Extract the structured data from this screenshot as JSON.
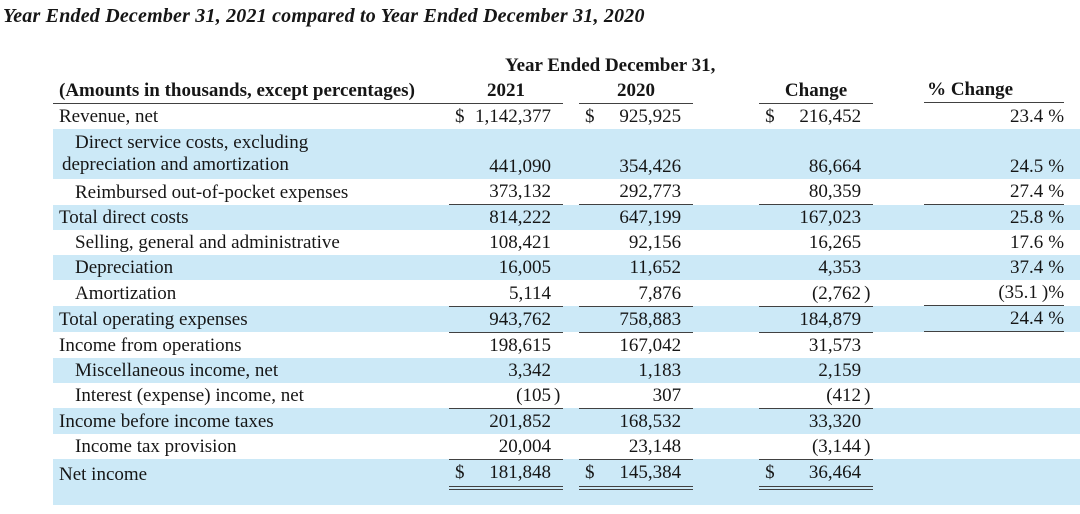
{
  "title": "Year Ended December 31, 2021 compared to Year Ended December 31, 2020",
  "table": {
    "group_header": "Year Ended December 31,",
    "col_headers": {
      "label": "(Amounts in thousands, except percentages)",
      "y2021": "2021",
      "y2020": "2020",
      "change": "Change",
      "pct_change": "% Change"
    },
    "currency_symbol": "$",
    "highlight_color": "#cce9f7",
    "rule_color": "#414141",
    "rows": [
      {
        "label": "Revenue, net",
        "indent": false,
        "highlight": false,
        "dollar": true,
        "v2021": "1,142,377",
        "v2020": "925,925",
        "change": "216,452",
        "pct": "23.4%",
        "rule": "none"
      },
      {
        "label": "Direct service costs, excluding depreciation and amortization",
        "indent": true,
        "two_line": true,
        "highlight": true,
        "dollar": false,
        "v2021": "441,090",
        "v2020": "354,426",
        "change": "86,664",
        "pct": "24.5%",
        "rule": "none"
      },
      {
        "label": "Reimbursed out-of-pocket expenses",
        "indent": true,
        "highlight": false,
        "dollar": false,
        "v2021": "373,132",
        "v2020": "292,773",
        "change": "80,359",
        "pct": "27.4%",
        "rule": "all"
      },
      {
        "label": "Total direct costs",
        "indent": false,
        "highlight": true,
        "dollar": false,
        "v2021": "814,222",
        "v2020": "647,199",
        "change": "167,023",
        "pct": "25.8%",
        "rule": "none"
      },
      {
        "label": "Selling, general and administrative",
        "indent": true,
        "highlight": false,
        "dollar": false,
        "v2021": "108,421",
        "v2020": "92,156",
        "change": "16,265",
        "pct": "17.6%",
        "rule": "none"
      },
      {
        "label": "Depreciation",
        "indent": true,
        "highlight": true,
        "dollar": false,
        "v2021": "16,005",
        "v2020": "11,652",
        "change": "4,353",
        "pct": "37.4%",
        "rule": "none"
      },
      {
        "label": "Amortization",
        "indent": true,
        "highlight": false,
        "dollar": false,
        "v2021": "5,114",
        "v2020": "7,876",
        "change": "(2,762)",
        "pct": "(35.1)%",
        "rule": "all"
      },
      {
        "label": "Total operating expenses",
        "indent": false,
        "highlight": true,
        "dollar": false,
        "v2021": "943,762",
        "v2020": "758,883",
        "change": "184,879",
        "pct": "24.4%",
        "rule": "all"
      },
      {
        "label": "Income from operations",
        "indent": false,
        "highlight": false,
        "dollar": false,
        "v2021": "198,615",
        "v2020": "167,042",
        "change": "31,573",
        "pct": "",
        "rule": "none"
      },
      {
        "label": "Miscellaneous income, net",
        "indent": true,
        "highlight": true,
        "dollar": false,
        "v2021": "3,342",
        "v2020": "1,183",
        "change": "2,159",
        "pct": "",
        "rule": "none"
      },
      {
        "label": "Interest (expense) income, net",
        "indent": true,
        "highlight": false,
        "dollar": false,
        "v2021": "(105)",
        "v2020": "307",
        "change": "(412)",
        "pct": "",
        "rule": "vals"
      },
      {
        "label": "Income before income taxes",
        "indent": false,
        "highlight": true,
        "dollar": false,
        "v2021": "201,852",
        "v2020": "168,532",
        "change": "33,320",
        "pct": "",
        "rule": "none"
      },
      {
        "label": "Income tax provision",
        "indent": true,
        "highlight": false,
        "dollar": false,
        "v2021": "20,004",
        "v2020": "23,148",
        "change": "(3,144)",
        "pct": "",
        "rule": "vals"
      },
      {
        "label": "Net income",
        "indent": false,
        "highlight": true,
        "dollar": true,
        "double_rule": true,
        "v2021": "181,848",
        "v2020": "145,384",
        "change": "36,464",
        "pct": "",
        "rule": "none"
      }
    ]
  }
}
